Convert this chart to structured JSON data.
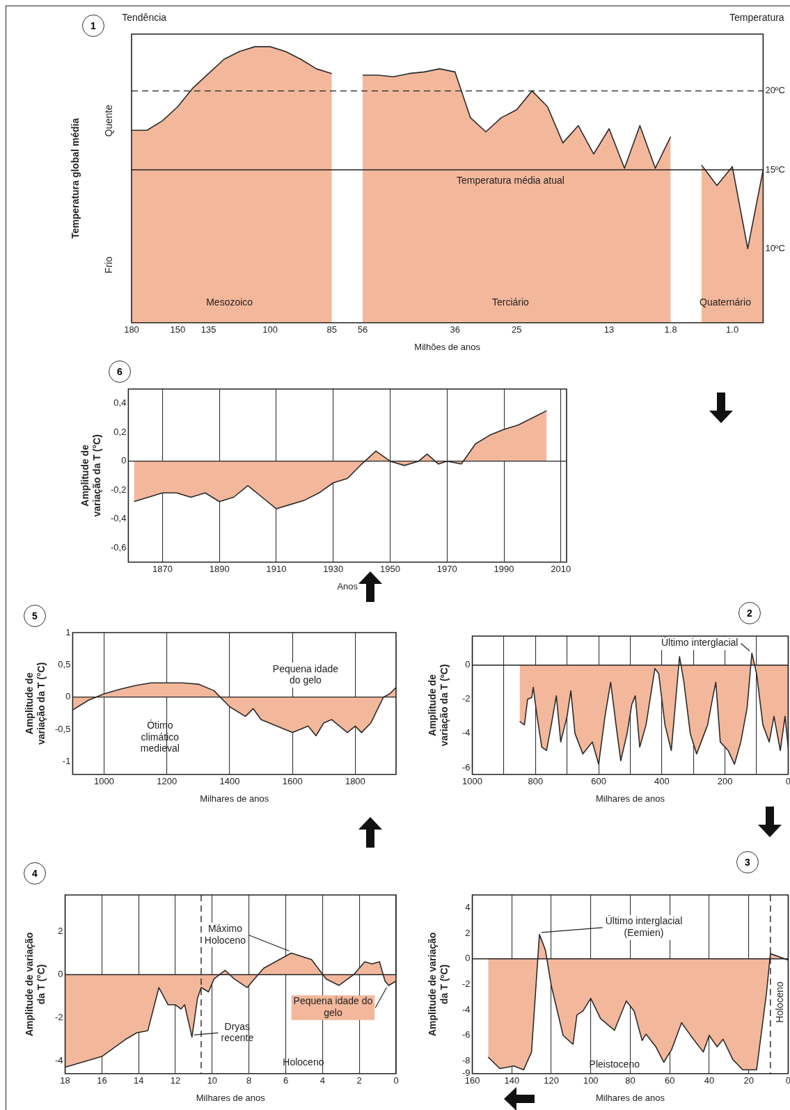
{
  "chart_data": [
    {
      "type": "area",
      "title": "1",
      "xlabel": "Milhões de anos",
      "ylabel": "Temperatura global média",
      "categories": [
        "180",
        null,
        null,
        "150",
        null,
        "135",
        null,
        null,
        null,
        "100",
        null,
        null,
        null,
        "85",
        null,
        "56",
        null,
        null,
        null,
        null,
        null,
        "36",
        null,
        null,
        null,
        "25",
        null,
        null,
        null,
        null,
        null,
        "13",
        null,
        null,
        null,
        "1.8",
        null,
        null,
        null,
        "1.0",
        null,
        null
      ],
      "series": [
        {
          "color": "#f3b89c",
          "values": [
            17.5,
            17.5,
            18.1,
            19.0,
            20.2,
            21.1,
            22.0,
            22.5,
            22.8,
            22.8,
            22.5,
            22.0,
            21.4,
            21.1,
            null,
            21.0,
            21.0,
            20.9,
            21.1,
            21.2,
            21.4,
            21.2,
            18.3,
            17.4,
            18.3,
            18.8,
            20.0,
            19.0,
            16.7,
            17.8,
            16.0,
            17.6,
            15.1,
            17.8,
            15.1,
            17.1,
            null,
            15.3,
            14.0,
            15.2,
            10.0,
            15.0
          ]
        }
      ],
      "ylim": [
        5.3,
        23.6
      ],
      "yticks": [
        {
          "value": 20,
          "label": "20ºC"
        },
        {
          "value": 15,
          "label": "15ºC"
        },
        {
          "value": 10,
          "label": "10ºC"
        }
      ],
      "grid": false,
      "ref_lines": [
        {
          "axis": "y",
          "value": 20,
          "line_style": "dashed"
        },
        {
          "axis": "y",
          "value": 15,
          "label": "Temperatura média atual"
        }
      ],
      "annotations": [
        "Tendência",
        "Quente",
        "Frio",
        "Temperatura",
        "Mesozoico",
        "Terciário",
        "Quaternário"
      ]
    },
    {
      "type": "area",
      "title": "6",
      "xlabel": "Anos",
      "ylabel": "Amplitude de variação da T (°C)",
      "x": [
        1860,
        1865,
        1870,
        1875,
        1880,
        1885,
        1890,
        1895,
        1900,
        1905,
        1910,
        1915,
        1920,
        1925,
        1930,
        1935,
        1940,
        1945,
        1950,
        1955,
        1960,
        1963,
        1967,
        1970,
        1975,
        1980,
        1985,
        1990,
        1995,
        2000,
        2005
      ],
      "series": [
        {
          "color": "#f3b89c",
          "values": [
            -0.28,
            -0.25,
            -0.22,
            -0.22,
            -0.25,
            -0.22,
            -0.28,
            -0.25,
            -0.17,
            -0.25,
            -0.33,
            -0.3,
            -0.27,
            -0.22,
            -0.15,
            -0.12,
            -0.02,
            0.07,
            0.0,
            -0.03,
            0.0,
            0.05,
            -0.02,
            0.0,
            -0.02,
            0.12,
            0.18,
            0.22,
            0.25,
            0.3,
            0.35
          ]
        }
      ],
      "xlim": [
        1858,
        2012
      ],
      "xticks": [
        1870,
        1890,
        1910,
        1930,
        1950,
        1970,
        1990,
        2010
      ],
      "ylim": [
        -0.7,
        0.5
      ],
      "yticks": [
        {
          "value": 0.4,
          "label": "0,4"
        },
        {
          "value": 0.2,
          "label": "0,2"
        },
        0,
        {
          "value": -0.2,
          "label": "-0,2"
        },
        {
          "value": -0.4,
          "label": "-0,4"
        },
        {
          "value": -0.6,
          "label": "-0,6"
        }
      ],
      "grid": "x",
      "ref_lines": [
        {
          "axis": "y",
          "value": 0
        }
      ]
    },
    {
      "type": "area",
      "title": "5",
      "xlabel": "Milhares de anos",
      "ylabel": "Amplitude de variação da T (°C)",
      "x": [
        900,
        950,
        1000,
        1050,
        1100,
        1150,
        1200,
        1250,
        1300,
        1350,
        1400,
        1450,
        1475,
        1500,
        1550,
        1600,
        1625,
        1650,
        1675,
        1700,
        1725,
        1750,
        1775,
        1800,
        1820,
        1850,
        1870,
        1890,
        1910,
        1930
      ],
      "series": [
        {
          "color": "#f3b89c",
          "values": [
            -0.2,
            -0.05,
            0.05,
            0.12,
            0.18,
            0.22,
            0.22,
            0.22,
            0.2,
            0.1,
            -0.15,
            -0.3,
            -0.18,
            -0.35,
            -0.45,
            -0.55,
            -0.5,
            -0.45,
            -0.6,
            -0.4,
            -0.35,
            -0.45,
            -0.55,
            -0.45,
            -0.55,
            -0.4,
            -0.2,
            0.0,
            0.05,
            0.15
          ]
        }
      ],
      "xlim": [
        900,
        1930
      ],
      "xticks": [
        1000,
        1200,
        1400,
        1600,
        1800
      ],
      "ylim": [
        -1.2,
        1
      ],
      "yticks": [
        1,
        {
          "value": 0.5,
          "label": "0,5"
        },
        0,
        {
          "value": -0.5,
          "label": "-0,5"
        },
        -1
      ],
      "grid": "x",
      "ref_lines": [
        {
          "axis": "y",
          "value": 0
        }
      ],
      "annotations": [
        "Ótimo climático medieval",
        "Pequena idade do gelo"
      ]
    },
    {
      "type": "area",
      "title": "2",
      "xlabel": "Milhares de anos",
      "ylabel": "Amplitude de variação da T (ºC)",
      "x": [
        850,
        835,
        825,
        812,
        807,
        795,
        780,
        765,
        750,
        734,
        720,
        700,
        688,
        675,
        650,
        620,
        600,
        580,
        562,
        545,
        530,
        510,
        495,
        484,
        470,
        450,
        422,
        410,
        390,
        370,
        344,
        330,
        310,
        290,
        255,
        240,
        229,
        215,
        190,
        170,
        150,
        130,
        115,
        100,
        80,
        60,
        45,
        25,
        10,
        0
      ],
      "series": [
        {
          "color": "#f3b89c",
          "values": [
            -3.3,
            -3.5,
            -2.0,
            -1.9,
            -1.3,
            -3.0,
            -4.8,
            -5.0,
            -3.5,
            -1.8,
            -4.5,
            -3.0,
            -1.5,
            -4.0,
            -5.2,
            -4.5,
            -5.8,
            -3.0,
            -1.0,
            -3.5,
            -5.6,
            -4.0,
            -2.3,
            -1.8,
            -4.8,
            -3.5,
            -0.2,
            -0.5,
            -3.5,
            -5.0,
            0.5,
            -1.0,
            -4.0,
            -5.2,
            -3.5,
            -2.0,
            -1.0,
            -4.5,
            -5.0,
            -5.8,
            -4.5,
            -2.5,
            0.7,
            -0.5,
            -3.5,
            -4.5,
            -3.0,
            -5.0,
            -3.0,
            -4.8
          ]
        }
      ],
      "xlim": [
        1000,
        0
      ],
      "xticks": [
        1000,
        {
          "value": 900,
          "label": null
        },
        800,
        {
          "value": 700,
          "label": null
        },
        600,
        {
          "value": 500,
          "label": null
        },
        400,
        {
          "value": 300,
          "label": null
        },
        200,
        {
          "value": 100,
          "label": null
        },
        0
      ],
      "ylim": [
        -6.4,
        1.7
      ],
      "yticks": [
        0,
        -2,
        -4,
        -6
      ],
      "grid": "x",
      "ref_lines": [
        {
          "axis": "y",
          "value": 0
        }
      ],
      "annotations": [
        {
          "text": "Último interglacial",
          "x": 115,
          "y": 0.7
        }
      ]
    },
    {
      "type": "area",
      "title": "4",
      "xlabel": "Milhares de anos",
      "ylabel": "Amplitude de variação da T (°C)",
      "x": [
        18,
        16,
        14.7,
        14.1,
        13.5,
        12.9,
        12.4,
        12.0,
        11.7,
        11.5,
        11.1,
        10.8,
        10.6,
        10.2,
        9.9,
        9.3,
        8.8,
        8.1,
        7.2,
        5.7,
        4.6,
        3.8,
        3.1,
        2.3,
        1.7,
        1.3,
        0.9,
        0.6,
        0.4,
        0
      ],
      "series": [
        {
          "color": "#f3b89c",
          "values": [
            -4.3,
            -3.8,
            -3.0,
            -2.7,
            -2.6,
            -0.6,
            -1.4,
            -1.4,
            -1.6,
            -1.4,
            -2.9,
            -1.1,
            -0.6,
            -0.8,
            -0.2,
            0.2,
            -0.2,
            -0.6,
            0.3,
            1.0,
            0.7,
            -0.2,
            -0.5,
            0,
            0.6,
            0.5,
            0.6,
            -0.3,
            -0.5,
            -0.3
          ]
        }
      ],
      "xlim": [
        18,
        0
      ],
      "xticks": [
        18,
        16,
        14,
        12,
        10,
        8,
        6,
        4,
        2,
        0
      ],
      "ylim": [
        -4.6,
        3.7
      ],
      "yticks": [
        2,
        0,
        -2,
        -4
      ],
      "grid": "x",
      "ref_lines": [
        {
          "axis": "y",
          "value": 0
        },
        {
          "axis": "x",
          "value": 10.6,
          "line_style": "dashed"
        }
      ],
      "annotations": [
        {
          "text": "Máximo Holoceno",
          "x": 5.7,
          "y": 1.0
        },
        {
          "text": "Dryas recente",
          "x": 11.1,
          "y": -2.9
        },
        {
          "text": "Pequena idade do gelo",
          "x": 0.4,
          "y": -0.5
        },
        "Holoceno"
      ]
    },
    {
      "type": "area",
      "title": "3",
      "xlabel": "Milhares de anos",
      "ylabel": "Amplitude de variação da T (ºC)",
      "x": [
        152,
        146,
        139,
        134,
        130,
        126,
        123,
        120,
        114,
        109,
        107,
        104,
        100,
        95,
        88,
        82,
        78,
        74,
        72,
        67,
        63,
        59,
        54,
        49,
        43,
        40,
        36,
        33,
        28,
        23,
        16,
        11,
        9,
        0
      ],
      "series": [
        {
          "color": "#f3b89c",
          "values": [
            -7.7,
            -8.6,
            -8.4,
            -8.7,
            -7.3,
            1.9,
            0.7,
            -2.1,
            -6,
            -6.7,
            -4.4,
            -4.1,
            -3.1,
            -4.7,
            -5.6,
            -3.3,
            -4.1,
            -6.4,
            -5.9,
            -6.9,
            -8.1,
            -7.1,
            -5,
            -6.1,
            -7.3,
            -6,
            -6.9,
            -6.3,
            -7.9,
            -8.7,
            -8.7,
            -2.7,
            0.4,
            -0.1
          ]
        }
      ],
      "xlim": [
        160,
        0
      ],
      "xticks": [
        160,
        140,
        120,
        100,
        80,
        60,
        40,
        20,
        0
      ],
      "ylim": [
        -9,
        5
      ],
      "yticks": [
        4,
        2,
        0,
        -2,
        -4,
        -6,
        -8,
        -9
      ],
      "grid": "x",
      "ref_lines": [
        {
          "axis": "y",
          "value": 0
        },
        {
          "axis": "x",
          "value": 9,
          "line_style": "dashed"
        }
      ],
      "annotations": [
        {
          "text": "Último interglacial (Eemien)",
          "x": 126,
          "y": 1.9
        },
        "Pleistoceno",
        "Holoceno"
      ]
    }
  ]
}
